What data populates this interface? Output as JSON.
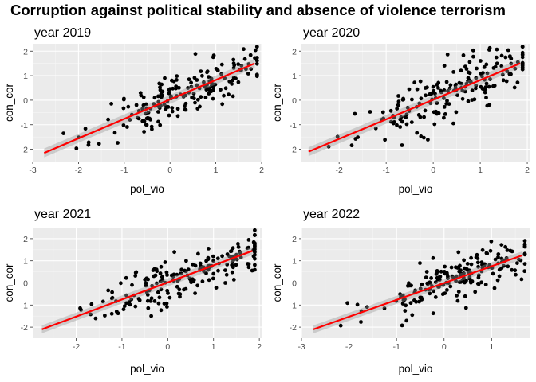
{
  "title": "Corruption against political stability and absence of violence terrorism",
  "chart_data": [
    {
      "type": "scatter",
      "title": "year 2019",
      "xlabel": "pol_vio",
      "ylabel": "con_cor",
      "xlim": [
        -3.0,
        2.0
      ],
      "ylim": [
        -2.5,
        2.3
      ],
      "xticks": [
        -3,
        -2,
        -1,
        0,
        1,
        2
      ],
      "yticks": [
        -2,
        -1,
        0,
        1,
        2
      ],
      "grid": true,
      "fit_line": {
        "x": [
          -2.75,
          1.85
        ],
        "y": [
          -2.15,
          1.5
        ],
        "color": "#ff0000"
      },
      "seed": 11
    },
    {
      "type": "scatter",
      "title": "year 2020",
      "xlabel": "pol_vio",
      "ylabel": "con_cor",
      "xlim": [
        -2.8,
        2.05
      ],
      "ylim": [
        -2.5,
        2.3
      ],
      "xticks": [
        -2,
        -1,
        0,
        1,
        2
      ],
      "yticks": [
        -2,
        -1,
        0,
        1,
        2
      ],
      "grid": true,
      "fit_line": {
        "x": [
          -2.65,
          1.85
        ],
        "y": [
          -2.1,
          1.5
        ],
        "color": "#ff0000"
      },
      "seed": 23
    },
    {
      "type": "scatter",
      "title": "year 2021",
      "xlabel": "pol_vio",
      "ylabel": "con_cor",
      "xlim": [
        -2.95,
        2.05
      ],
      "ylim": [
        -2.5,
        2.5
      ],
      "xticks": [
        -2,
        -1,
        0,
        1,
        2
      ],
      "yticks": [
        -2,
        -1,
        0,
        1,
        2
      ],
      "grid": true,
      "fit_line": {
        "x": [
          -2.75,
          1.85
        ],
        "y": [
          -2.1,
          1.45
        ],
        "color": "#ff0000"
      },
      "seed": 37
    },
    {
      "type": "scatter",
      "title": "year 2022",
      "xlabel": "pol_vio",
      "ylabel": "con_cor",
      "xlim": [
        -3.0,
        1.8
      ],
      "ylim": [
        -2.5,
        2.5
      ],
      "xticks": [
        -3,
        -2,
        -1,
        0,
        1
      ],
      "yticks": [
        -2,
        -1,
        0,
        1,
        2
      ],
      "grid": true,
      "fit_line": {
        "x": [
          -2.75,
          1.65
        ],
        "y": [
          -2.1,
          1.25
        ],
        "color": "#ff0000"
      },
      "seed": 53
    }
  ]
}
